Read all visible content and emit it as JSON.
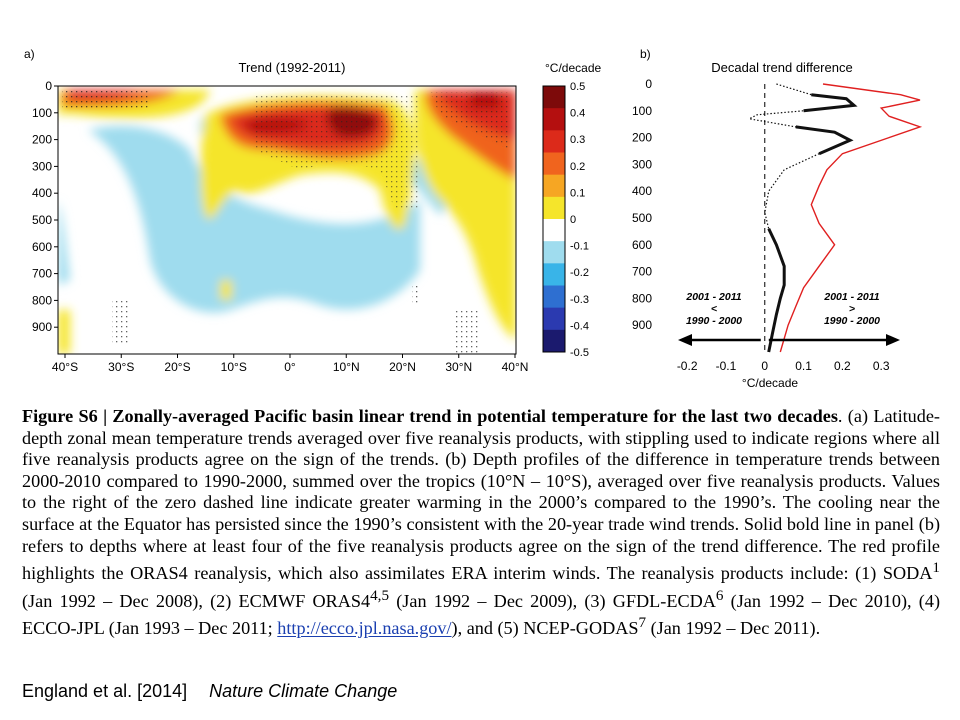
{
  "chart_data": [
    {
      "type": "heatmap",
      "panel": "a)",
      "title": "Trend (1992-2011)",
      "x_ticks": [
        "40°S",
        "30°S",
        "20°S",
        "10°S",
        "0°",
        "10°N",
        "20°N",
        "30°N",
        "40°N"
      ],
      "y_ticks": [
        "0",
        "100",
        "200",
        "300",
        "400",
        "500",
        "600",
        "700",
        "800",
        "900"
      ],
      "colorbar_label": "°C/decade",
      "colorbar_ticks": [
        "0.5",
        "0.4",
        "0.3",
        "0.2",
        "0.1",
        "0",
        "-0.1",
        "-0.2",
        "-0.3",
        "-0.4",
        "-0.5"
      ],
      "colorbar_colors": [
        "#7d0a0a",
        "#b40f0f",
        "#dc2a1a",
        "#f0641e",
        "#f6a623",
        "#f5e52b",
        "#ffffff",
        "#9fdcee",
        "#39b4e8",
        "#2e6fd1",
        "#2b3ab0",
        "#1b1a6e"
      ],
      "features": [
        {
          "name": "equatorial warming maximum",
          "lat_range": [
            -8,
            12
          ],
          "depth_range": [
            80,
            300
          ],
          "value": 0.5
        },
        {
          "name": "northern subtropical warming",
          "lat_range": [
            25,
            40
          ],
          "depth_range": [
            0,
            350
          ],
          "value": 0.4
        },
        {
          "name": "southern subtropical warming",
          "lat_range": [
            -40,
            -12
          ],
          "depth_range": [
            0,
            150
          ],
          "value": 0.3
        },
        {
          "name": "deep cooling",
          "lat_range": [
            -33,
            22
          ],
          "depth_range": [
            300,
            850
          ],
          "value": -0.1
        },
        {
          "name": "equatorial surface cooling",
          "lat_range": [
            -10,
            8
          ],
          "depth_range": [
            0,
            60
          ],
          "value": -0.1
        }
      ]
    },
    {
      "type": "line",
      "panel": "b)",
      "title": "Decadal trend difference",
      "xlabel": "°C/decade",
      "x_ticks": [
        "-0.2",
        "-0.1",
        "0",
        "0.1",
        "0.2",
        "0.3"
      ],
      "y_ticks": [
        "0",
        "100",
        "200",
        "300",
        "400",
        "500",
        "600",
        "700",
        "800",
        "900"
      ],
      "xlim": [
        -0.27,
        0.4
      ],
      "ylim": [
        0,
        1000
      ],
      "zero_line": "dashed",
      "series": [
        {
          "color": "#111111",
          "style": "mixed",
          "x": [
            0.03,
            0.12,
            0.21,
            0.23,
            0.1,
            -0.02,
            -0.04,
            0.08,
            0.18,
            0.22,
            0.14,
            0.05,
            0.01,
            0.0,
            0.01,
            0.03,
            0.05,
            0.05,
            0.04,
            0.03,
            0.02,
            0.01
          ],
          "y": [
            0,
            40,
            55,
            80,
            100,
            115,
            130,
            160,
            180,
            210,
            260,
            320,
            400,
            480,
            540,
            600,
            680,
            750,
            800,
            860,
            930,
            1000
          ]
        },
        {
          "color": "#e02020",
          "style": "solid",
          "x": [
            0.15,
            0.35,
            0.4,
            0.3,
            0.32,
            0.4,
            0.32,
            0.2,
            0.16,
            0.14,
            0.12,
            0.14,
            0.18,
            0.14,
            0.1,
            0.08,
            0.06,
            0.04
          ],
          "y": [
            0,
            40,
            60,
            90,
            120,
            160,
            200,
            260,
            320,
            380,
            450,
            520,
            600,
            680,
            760,
            830,
            900,
            1000
          ]
        }
      ],
      "annotations": [
        {
          "text_lines": [
            "2001 - 2011",
            "<",
            "1990 - 2000"
          ],
          "side": "left"
        },
        {
          "text_lines": [
            "2001 - 2011",
            ">",
            "1990 - 2000"
          ],
          "side": "right"
        }
      ]
    }
  ],
  "caption": {
    "title": "Figure S6   | Zonally-averaged Pacific basin linear trend in potential temperature for the last two decades",
    "title_end": ".",
    "body_1": " (a) Latitude-depth zonal mean temperature trends averaged over five reanalysis products, with stippling used to indicate regions where all five reanalysis products agree on the sign of the trends. (b) Depth profiles of the difference in temperature trends between 2000-2010 compared to 1990-2000, summed over the tropics (10°N – 10°S), averaged over five reanalysis products. Values to the right of the zero dashed line indicate greater warming in the 2000’s compared to the 1990’s. The cooling near the surface at the Equator has persisted since the 1990’s consistent with the 20-year trade wind trends. Solid bold line in panel (b) refers to depths where at least four of the five reanalysis products agree on the sign of the trend difference. The red profile highlights the ORAS4 reanalysis, which also assimilates ERA interim winds. The reanalysis products include: (1) SODA",
    "sup_1": "1",
    "body_2": " (Jan 1992 – Dec 2008), (2) ECMWF ORAS4",
    "sup_2": "4,5",
    "body_3": " (Jan 1992 – Dec 2009), (3) GFDL-ECDA",
    "sup_3": "6",
    "body_4": " (Jan 1992 – Dec 2010), (4) ECCO-JPL (Jan 1993 – Dec 2011; ",
    "link": "http://ecco.jpl.nasa.gov/",
    "body_5": "), and (5) NCEP-GODAS",
    "sup_4": "7",
    "body_6": " (Jan 1992 – Dec 2011)."
  },
  "credit": {
    "authors": "England et al. [2014]",
    "journal": "Nature Climate Change"
  }
}
